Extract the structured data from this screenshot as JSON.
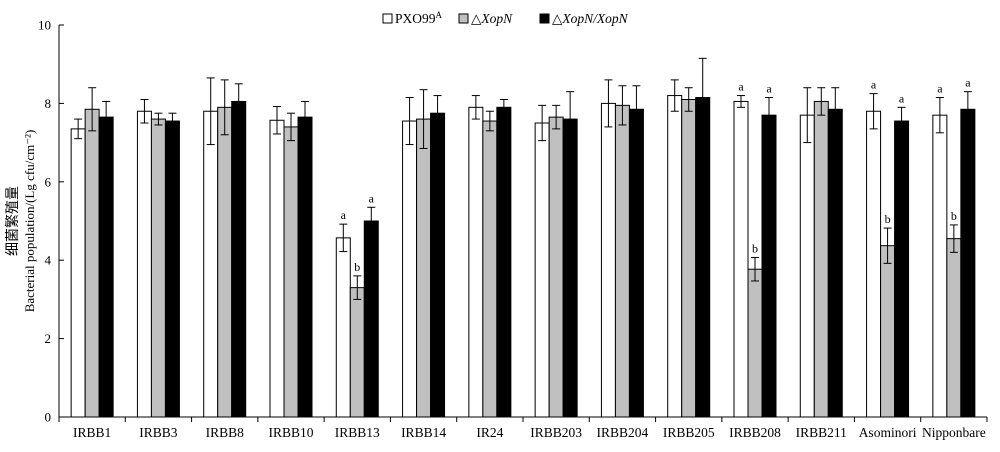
{
  "chart_data": {
    "type": "bar",
    "ylabel_cn": "细菌繁殖量",
    "ylabel": "Bacterial population/(Lg cfu/cm⁻²)",
    "ylim": [
      0,
      10
    ],
    "yticks": [
      0,
      2,
      4,
      6,
      8,
      10
    ],
    "legend_position": "top-center",
    "categories": [
      "IRBB1",
      "IRBB3",
      "IRBB8",
      "IRBB10",
      "IRBB13",
      "IRBB14",
      "IR24",
      "IRBB203",
      "IRBB204",
      "IRBB205",
      "IRBB208",
      "IRBB211",
      "Asominori",
      "Nipponbare"
    ],
    "series": [
      {
        "name": "PXO99ᴬ",
        "legend_main": "PXO99",
        "legend_sup": "A",
        "color": "#ffffff",
        "values": [
          7.35,
          7.8,
          7.8,
          7.57,
          4.57,
          7.55,
          7.9,
          7.5,
          8.0,
          8.2,
          8.05,
          7.7,
          7.8,
          7.7
        ],
        "errors": [
          0.25,
          0.3,
          0.85,
          0.35,
          0.35,
          0.6,
          0.3,
          0.45,
          0.6,
          0.4,
          0.15,
          0.7,
          0.45,
          0.45
        ],
        "sig": [
          "",
          "",
          "",
          "",
          "a",
          "",
          "",
          "",
          "",
          "",
          "a",
          "",
          "a",
          "a"
        ]
      },
      {
        "name": "△XopN",
        "legend_prefix": "△",
        "legend_italic": "XopN",
        "color": "#c0c0c0",
        "values": [
          7.85,
          7.6,
          7.9,
          7.4,
          3.3,
          7.6,
          7.55,
          7.65,
          7.95,
          8.1,
          3.77,
          8.05,
          4.37,
          4.55
        ],
        "errors": [
          0.55,
          0.15,
          0.7,
          0.35,
          0.3,
          0.75,
          0.25,
          0.3,
          0.5,
          0.3,
          0.3,
          0.35,
          0.45,
          0.35
        ],
        "sig": [
          "",
          "",
          "",
          "",
          "b",
          "",
          "",
          "",
          "",
          "",
          "b",
          "",
          "b",
          "b"
        ]
      },
      {
        "name": "△XopN/XopN",
        "legend_prefix": "△",
        "legend_italic": "XopN/XopN",
        "color": "#000000",
        "values": [
          7.65,
          7.55,
          8.05,
          7.65,
          5.0,
          7.75,
          7.9,
          7.6,
          7.85,
          8.15,
          7.7,
          7.85,
          7.55,
          7.85
        ],
        "errors": [
          0.4,
          0.2,
          0.45,
          0.4,
          0.35,
          0.45,
          0.2,
          0.7,
          0.6,
          1.0,
          0.45,
          0.55,
          0.35,
          0.45
        ],
        "sig": [
          "",
          "",
          "",
          "",
          "a",
          "",
          "",
          "",
          "",
          "",
          "a",
          "",
          "a",
          "a"
        ]
      }
    ]
  }
}
